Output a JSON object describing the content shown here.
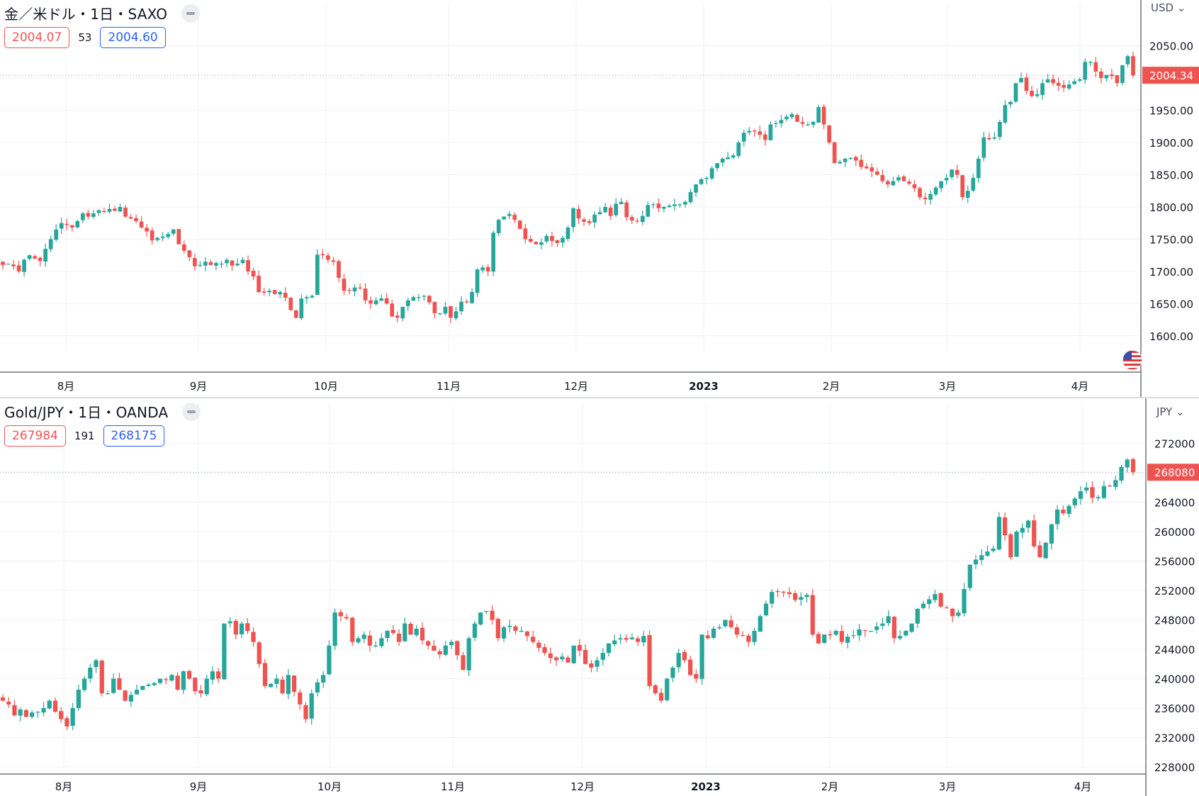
{
  "colors": {
    "up": "#26a69a",
    "down": "#ef5350",
    "grid": "#eef0f3",
    "axis": "#131722",
    "bid": "#f05556",
    "ask": "#2962ff"
  },
  "panels": [
    {
      "title": "金／米ドル・1日・SAXO",
      "bid": "2004.07",
      "spread": "53",
      "ask": "2004.60",
      "currency": "USD",
      "last_price_label": "2004.34",
      "icons": [
        "collapse-icon",
        "chevron-down-icon",
        "us-flag-icon"
      ]
    },
    {
      "title": "Gold/JPY・1日・OANDA",
      "bid": "267984",
      "spread": "191",
      "ask": "268175",
      "currency": "JPY",
      "last_price_label": "268080",
      "icons": [
        "collapse-icon",
        "chevron-down-icon"
      ]
    }
  ],
  "chart_data": [
    {
      "type": "candlestick",
      "title": "金／米ドル・1日・SAXO",
      "ylabel": "USD",
      "ylim": [
        1575,
        2070
      ],
      "y_ticks": [
        "1600.00",
        "1650.00",
        "1700.00",
        "1750.00",
        "1800.00",
        "1850.00",
        "1900.00",
        "1950.00",
        "2000.00",
        "2050.00"
      ],
      "x_ticks": [
        "8月",
        "9月",
        "10月",
        "11月",
        "12月",
        "2023",
        "2月",
        "3月",
        "4月"
      ],
      "last_price": 2004.34,
      "bid": 2004.07,
      "ask": 2004.6,
      "close_series": [
        1710,
        1712,
        1708,
        1700,
        1718,
        1725,
        1720,
        1716,
        1735,
        1750,
        1765,
        1775,
        1772,
        1768,
        1778,
        1790,
        1785,
        1790,
        1795,
        1792,
        1797,
        1794,
        1800,
        1785,
        1782,
        1778,
        1768,
        1762,
        1748,
        1752,
        1754,
        1758,
        1765,
        1742,
        1732,
        1722,
        1708,
        1710,
        1715,
        1710,
        1713,
        1712,
        1718,
        1709,
        1712,
        1718,
        1700,
        1692,
        1668,
        1667,
        1670,
        1665,
        1668,
        1659,
        1640,
        1628,
        1658,
        1660,
        1662,
        1726,
        1725,
        1718,
        1715,
        1690,
        1670,
        1670,
        1675,
        1674,
        1655,
        1650,
        1655,
        1658,
        1650,
        1630,
        1628,
        1645,
        1655,
        1660,
        1660,
        1662,
        1652,
        1635,
        1635,
        1645,
        1628,
        1638,
        1653,
        1652,
        1668,
        1703,
        1706,
        1700,
        1760,
        1780,
        1785,
        1789,
        1780,
        1766,
        1750,
        1746,
        1742,
        1745,
        1755,
        1747,
        1744,
        1752,
        1768,
        1798,
        1782,
        1777,
        1775,
        1788,
        1792,
        1800,
        1786,
        1805,
        1808,
        1784,
        1779,
        1778,
        1786,
        1803,
        1804,
        1798,
        1800,
        1802,
        1804,
        1804,
        1808,
        1823,
        1835,
        1843,
        1845,
        1860,
        1868,
        1875,
        1877,
        1880,
        1900,
        1915,
        1918,
        1917,
        1912,
        1904,
        1928,
        1930,
        1935,
        1940,
        1944,
        1932,
        1929,
        1928,
        1932,
        1955,
        1928,
        1900,
        1868,
        1870,
        1875,
        1876,
        1872,
        1862,
        1860,
        1855,
        1850,
        1840,
        1835,
        1840,
        1846,
        1840,
        1836,
        1829,
        1815,
        1812,
        1820,
        1830,
        1840,
        1845,
        1858,
        1850,
        1815,
        1825,
        1845,
        1875,
        1908,
        1905,
        1908,
        1932,
        1958,
        1963,
        1992,
        2000,
        1980,
        1972,
        1975,
        1992,
        1998,
        1992,
        1988,
        1985,
        1990,
        1995,
        1998,
        2025,
        2025,
        2010,
        2000,
        2005,
        2003,
        1992,
        2020,
        2034,
        2004
      ]
    },
    {
      "type": "candlestick",
      "title": "Gold/JPY・1日・OANDA",
      "ylabel": "JPY",
      "ylim": [
        227800,
        273600
      ],
      "y_ticks": [
        "228000",
        "232000",
        "236000",
        "240000",
        "244000",
        "248000",
        "252000",
        "256000",
        "260000",
        "264000",
        "268000",
        "272000"
      ],
      "x_ticks": [
        "8月",
        "9月",
        "10月",
        "11月",
        "12月",
        "2023",
        "2月",
        "3月",
        "4月"
      ],
      "last_price": 268080,
      "bid": 267984,
      "ask": 268175,
      "close_series": [
        237000,
        236500,
        235000,
        235800,
        234800,
        235400,
        235500,
        236000,
        237000,
        235500,
        234500,
        233500,
        236000,
        238500,
        240000,
        241500,
        242500,
        238000,
        238000,
        240000,
        238500,
        237000,
        237800,
        238500,
        239000,
        239200,
        239400,
        240000,
        239800,
        240500,
        238500,
        241000,
        240000,
        238300,
        238000,
        240000,
        241000,
        240000,
        247500,
        247800,
        246000,
        247500,
        246500,
        245000,
        242000,
        239000,
        239300,
        240000,
        238000,
        240500,
        238200,
        236500,
        234500,
        238000,
        239500,
        240500,
        244500,
        249000,
        248500,
        248200,
        245000,
        245500,
        246000,
        244500,
        244500,
        245500,
        246500,
        246200,
        245000,
        247500,
        246000,
        246800,
        245200,
        244500,
        243800,
        243300,
        244500,
        245000,
        243200,
        241200,
        245500,
        247500,
        249000,
        249200,
        248000,
        245500,
        247000,
        247200,
        246500,
        246500,
        245800,
        245000,
        244200,
        243500,
        242800,
        242500,
        243000,
        242200,
        244500,
        243800,
        242000,
        241500,
        242500,
        243500,
        244800,
        245200,
        245500,
        245300,
        245600,
        245000,
        245800,
        239000,
        238000,
        237000,
        240000,
        241500,
        243500,
        242500,
        240500,
        240000,
        246000,
        245500,
        246800,
        247000,
        248000,
        247000,
        246000,
        245800,
        245000,
        246500,
        248500,
        250200,
        251800,
        251800,
        251700,
        251500,
        250700,
        251100,
        251400,
        246000,
        244800,
        246000,
        245900,
        246500,
        245000,
        245700,
        245900,
        246700,
        246500,
        246500,
        247100,
        247500,
        248500,
        245500,
        245800,
        246500,
        247500,
        249500,
        250200,
        250800,
        251500,
        249800,
        249600,
        248500,
        249000,
        252200,
        255500,
        256200,
        256800,
        257300,
        257700,
        262000,
        259500,
        256500,
        260000,
        260500,
        261500,
        258000,
        256500,
        258500,
        261000,
        263000,
        262500,
        263500,
        264500,
        265500,
        266000,
        264600,
        264700,
        266200,
        266200,
        267000,
        268800,
        269800,
        268080
      ]
    }
  ]
}
